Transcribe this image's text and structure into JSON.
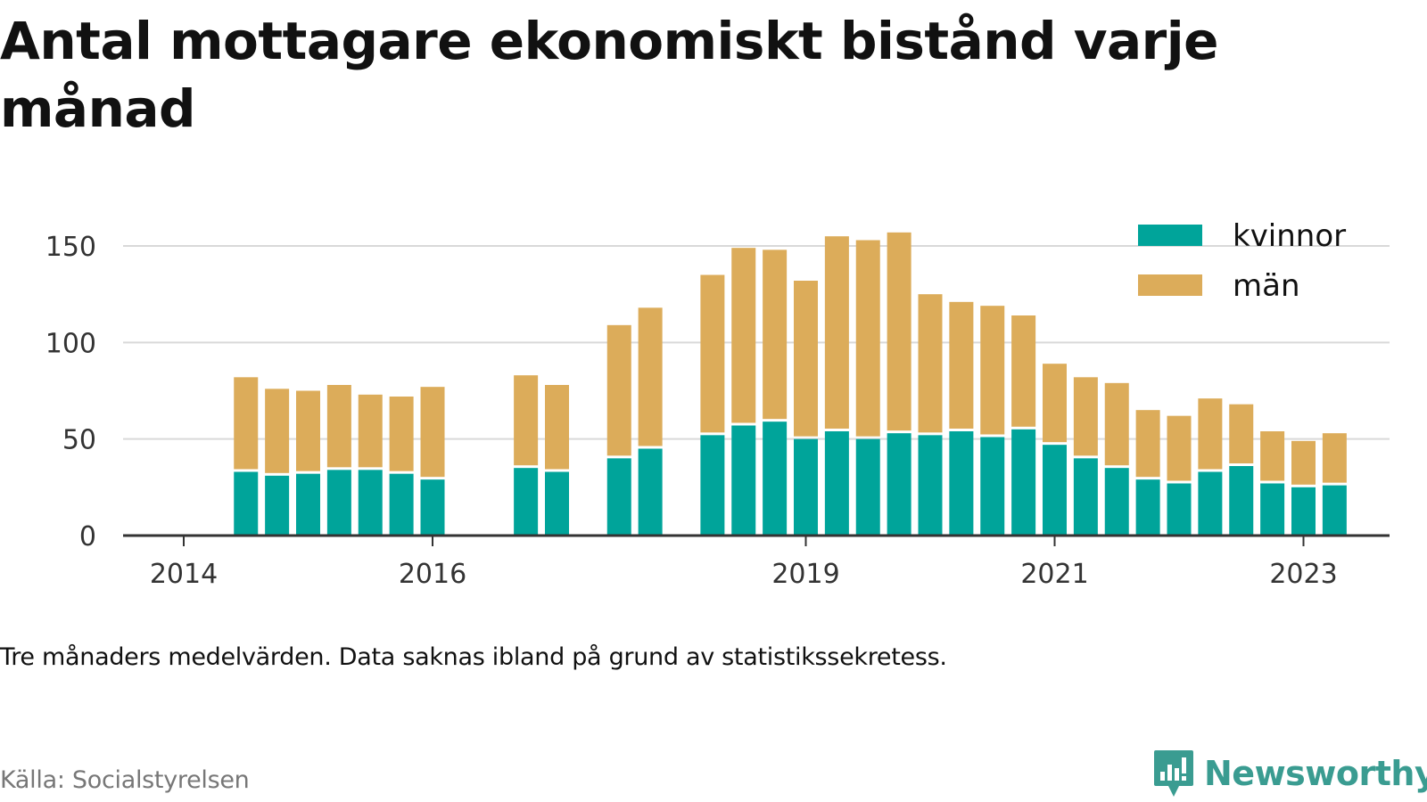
{
  "title": "Antal mottagare ekonomiskt bistånd varje månad",
  "note": "Tre månaders medelvärden. Data saknas ibland på grund av statistikssekretess.",
  "source": "Källa: Socialstyrelsen",
  "brand": "Newsworthy",
  "colors": {
    "kvinnor": "#00a49a",
    "man": "#dcac5a",
    "grid": "#d9d9d9",
    "axis": "#333333",
    "brand": "#3a9c91"
  },
  "chart_data": {
    "type": "bar",
    "stacked": true,
    "x_unit": "date",
    "x": [
      "2014-07",
      "2014-10",
      "2015-01",
      "2015-04",
      "2015-07",
      "2015-10",
      "2016-01",
      "2016-04",
      "2016-07",
      "2016-10",
      "2017-01",
      "2017-04",
      "2017-07",
      "2017-10",
      "2018-01",
      "2018-04",
      "2018-07",
      "2018-10",
      "2019-01",
      "2019-04",
      "2019-07",
      "2019-10",
      "2020-01",
      "2020-04",
      "2020-07",
      "2020-10",
      "2021-01",
      "2021-04",
      "2021-07",
      "2021-10",
      "2022-01",
      "2022-04",
      "2022-07",
      "2022-10",
      "2023-01",
      "2023-04"
    ],
    "series": [
      {
        "name": "kvinnor",
        "color": "#00a49a",
        "values": [
          33,
          31,
          32,
          34,
          34,
          32,
          29,
          null,
          null,
          35,
          33,
          null,
          40,
          45,
          null,
          52,
          57,
          59,
          50,
          54,
          50,
          53,
          52,
          54,
          51,
          55,
          47,
          40,
          35,
          29,
          27,
          33,
          36,
          27,
          25,
          26
        ]
      },
      {
        "name": "män",
        "color": "#dcac5a",
        "values": [
          49,
          45,
          43,
          44,
          39,
          40,
          48,
          null,
          null,
          48,
          45,
          null,
          69,
          73,
          null,
          83,
          92,
          89,
          82,
          101,
          103,
          104,
          73,
          67,
          68,
          59,
          42,
          42,
          44,
          36,
          35,
          38,
          32,
          27,
          24,
          27
        ]
      }
    ],
    "x_ticks": [
      "2014",
      "2016",
      "2019",
      "2021",
      "2023"
    ],
    "y_ticks": [
      0,
      50,
      100,
      150
    ],
    "ylim": [
      0,
      160
    ],
    "grid": true,
    "legend_position": "top-right"
  }
}
